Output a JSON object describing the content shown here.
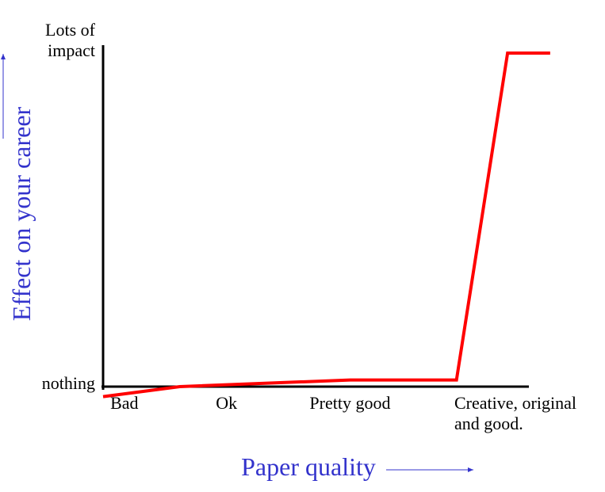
{
  "chart_data": {
    "type": "line",
    "xlabel": "Paper quality",
    "ylabel": "Effect on your career",
    "xlim": [
      0,
      10
    ],
    "ylim": [
      0,
      1
    ],
    "xticks": [
      {
        "value": 0.5,
        "label": "Bad"
      },
      {
        "value": 2.9,
        "label": "Ok"
      },
      {
        "value": 5.8,
        "label": "Pretty good"
      },
      {
        "value": 10,
        "label": "Creative, original and good."
      }
    ],
    "yticks": [
      {
        "value": 0,
        "label": "nothing"
      },
      {
        "value": 1,
        "label": "Lots of impact"
      }
    ],
    "series": [
      {
        "color": "#ff0000",
        "x": [
          0,
          1.8,
          5.8,
          8.3,
          9.5,
          10.5
        ],
        "values": [
          -0.03,
          0,
          0.02,
          0.02,
          1,
          1
        ]
      }
    ]
  }
}
